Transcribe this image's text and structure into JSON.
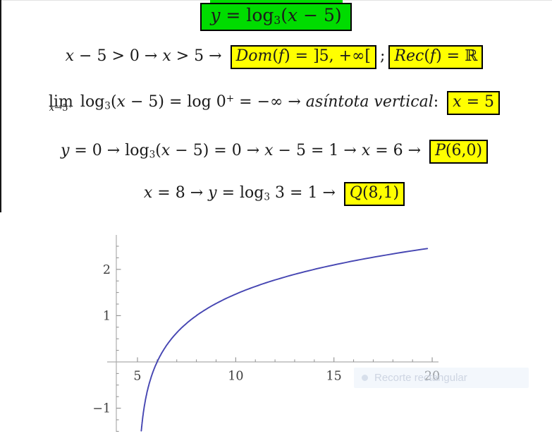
{
  "page": {
    "background": "#ffffff",
    "highlight_green": "#00dc00",
    "highlight_yellow": "#ffff00",
    "text_color": "#1b1b1b"
  },
  "title": {
    "plain_text": "y = log3(x − 5)",
    "segments": [
      {
        "t": "y",
        "s": "i"
      },
      {
        "t": " = log",
        "s": "r"
      },
      {
        "t": "3",
        "s": "sub"
      },
      {
        "t": "(",
        "s": "r"
      },
      {
        "t": "x",
        "s": "i"
      },
      {
        "t": " − 5)",
        "s": "r"
      }
    ]
  },
  "lines": [
    {
      "name": "domain-range-line",
      "plain_text": "x − 5 > 0 → x > 5 → Dom(f) = ]5, +∞[ ; Rec(f) = ℝ",
      "segments": [
        {
          "t": "x",
          "s": "i"
        },
        {
          "t": " − 5 > 0 → ",
          "s": "r"
        },
        {
          "t": "x",
          "s": "i"
        },
        {
          "t": " > 5 → ",
          "s": "r"
        },
        {
          "box": [
            {
              "t": "Dom",
              "s": "i"
            },
            {
              "t": "(",
              "s": "r"
            },
            {
              "t": "f",
              "s": "i"
            },
            {
              "t": ") = ]5, +∞[",
              "s": "r"
            }
          ]
        },
        {
          "t": ";",
          "s": "r"
        },
        {
          "box": [
            {
              "t": "Rec",
              "s": "i"
            },
            {
              "t": "(",
              "s": "r"
            },
            {
              "t": "f",
              "s": "i"
            },
            {
              "t": ") = ℝ",
              "s": "r"
            }
          ]
        }
      ]
    },
    {
      "name": "limit-asymptote-line",
      "plain_text": "lim x→5+ log3(x − 5) = log 0+ = −∞ → asíntota vertical: x = 5",
      "segments": [
        {
          "lim": {
            "top": "lim",
            "under": [
              {
                "t": "x",
                "s": "i"
              },
              {
                "t": "→5",
                "s": "r"
              },
              {
                "t": "+",
                "s": "sup"
              }
            ]
          }
        },
        {
          "t": " log",
          "s": "r"
        },
        {
          "t": "3",
          "s": "sub"
        },
        {
          "t": "(",
          "s": "r"
        },
        {
          "t": "x",
          "s": "i"
        },
        {
          "t": " − 5) = log 0",
          "s": "r"
        },
        {
          "t": "+",
          "s": "sup"
        },
        {
          "t": " = −∞ → ",
          "s": "r"
        },
        {
          "t": "asíntota vertical",
          "s": "i"
        },
        {
          "t": ": ",
          "s": "r"
        },
        {
          "box": [
            {
              "t": "x",
              "s": "i"
            },
            {
              "t": " = 5",
              "s": "r"
            }
          ]
        }
      ]
    },
    {
      "name": "x-intercept-line",
      "plain_text": "y = 0 → log3(x − 5) = 0 → x − 5 = 1 → x = 6 → P(6,0)",
      "segments": [
        {
          "t": "y",
          "s": "i"
        },
        {
          "t": " = 0 → log",
          "s": "r"
        },
        {
          "t": "3",
          "s": "sub"
        },
        {
          "t": "(",
          "s": "r"
        },
        {
          "t": "x",
          "s": "i"
        },
        {
          "t": " − 5) = 0 → ",
          "s": "r"
        },
        {
          "t": "x",
          "s": "i"
        },
        {
          "t": " − 5 = 1 → ",
          "s": "r"
        },
        {
          "t": "x",
          "s": "i"
        },
        {
          "t": " = 6 → ",
          "s": "r"
        },
        {
          "box": [
            {
              "t": "P",
              "s": "i"
            },
            {
              "t": "(6,0)",
              "s": "r"
            }
          ]
        }
      ]
    },
    {
      "name": "point-q-line",
      "plain_text": "x = 8 → y = log3 3 = 1 → Q(8,1)",
      "segments": [
        {
          "t": "x",
          "s": "i"
        },
        {
          "t": " = 8 → ",
          "s": "r"
        },
        {
          "t": "y",
          "s": "i"
        },
        {
          "t": " = log",
          "s": "r"
        },
        {
          "t": "3",
          "s": "sub"
        },
        {
          "t": " 3 = 1 → ",
          "s": "r"
        },
        {
          "box": [
            {
              "t": "Q",
              "s": "i"
            },
            {
              "t": "(8,1)",
              "s": "r"
            }
          ]
        }
      ]
    }
  ],
  "chart_data": {
    "type": "line",
    "title": "",
    "xlabel": "",
    "ylabel": "",
    "function": "y = log base 3 of (x - 5)",
    "series": [
      {
        "name": "log3(x-5)",
        "log_base": 3,
        "x_shift": 5,
        "color": "#4545b2",
        "y_start": -1.49,
        "y_end": 2.468,
        "x_max": 20.07
      }
    ],
    "x_ticks_major": [
      5,
      10,
      15,
      20
    ],
    "x_tick_labels": [
      "5",
      "10",
      "15",
      "20"
    ],
    "x_ticks_minor": [
      6,
      7,
      8,
      9,
      11,
      12,
      13,
      14,
      16,
      17,
      18,
      19
    ],
    "y_ticks_major": [
      2,
      1,
      -1
    ],
    "y_tick_labels": [
      "2",
      "1",
      "−1"
    ],
    "y_ticks_minor": [
      2.5,
      2.25,
      1.75,
      1.5,
      1.25,
      0.75,
      0.5,
      0.25,
      -0.25,
      -0.5,
      -0.75,
      -1.25,
      -1.5
    ],
    "key_points": [
      [
        6,
        0
      ],
      [
        8,
        1
      ]
    ],
    "vertical_asymptote_x": 5,
    "xlim": [
      3.9,
      20.4
    ],
    "ylim": [
      -1.55,
      2.75
    ],
    "grid": false,
    "legend": false,
    "axis_color": "#aeaeae",
    "tick_color": "#8f8f8f",
    "label_color": "#3e3e3e"
  },
  "watermark": {
    "label": "Recorte rectangular"
  }
}
